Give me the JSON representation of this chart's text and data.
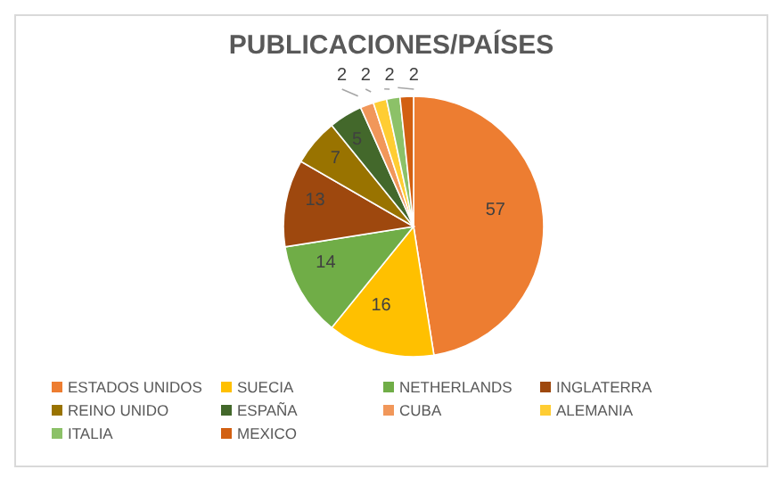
{
  "chart_data": {
    "type": "pie",
    "title": "PUBLICACIONES/PAÍSES",
    "categories": [
      "ESTADOS UNIDOS",
      "SUECIA",
      "NETHERLANDS",
      "INGLATERRA",
      "REINO UNIDO",
      "ESPAÑA",
      "CUBA",
      "ALEMANIA",
      "ITALIA",
      "MEXICO"
    ],
    "values": [
      57,
      16,
      14,
      13,
      7,
      5,
      2,
      2,
      2,
      2
    ],
    "colors": [
      "#ed7d31",
      "#ffc000",
      "#70ad47",
      "#9e480e",
      "#997300",
      "#43682b",
      "#f1975a",
      "#ffcd33",
      "#8cc168",
      "#d26012"
    ],
    "data_labels": true,
    "legend": "bottom"
  }
}
